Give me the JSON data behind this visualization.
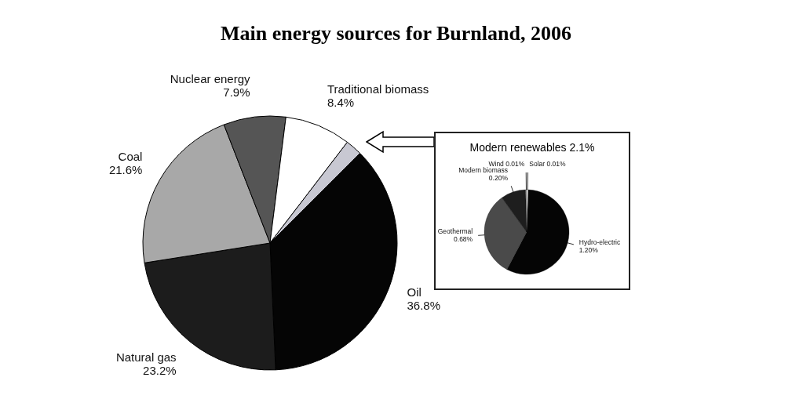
{
  "chart_data": [
    {
      "type": "pie",
      "title": "Main energy sources for Burnland, 2006",
      "categories": [
        "Oil",
        "Natural gas",
        "Coal",
        "Nuclear energy",
        "Traditional biomass",
        null
      ],
      "values": [
        36.8,
        23.2,
        21.6,
        7.9,
        8.4,
        2.1
      ],
      "value_labels": [
        "36.8%",
        "23.2%",
        "21.6%",
        "7.9%",
        "8.4%",
        null
      ],
      "colors": [
        "#050505",
        "#1c1c1c",
        "#a8a8a8",
        "#555555",
        "#ffffff",
        "#c8c8d2"
      ]
    },
    {
      "type": "pie",
      "title": "Modern renewables 2.1%",
      "categories": [
        "Hydro-electric",
        "Geothermal",
        "Modern biomass",
        "Wind",
        "Solar"
      ],
      "values": [
        1.2,
        0.68,
        0.2,
        0.01,
        0.01
      ],
      "value_labels": [
        "1.20%",
        "0.68%",
        "0.20%",
        "0.01%",
        "0.01%"
      ],
      "colors": [
        "#050505",
        "#4a4a4a",
        "#1e1e1e",
        "#bbbbbb",
        "#ffffff"
      ]
    }
  ]
}
